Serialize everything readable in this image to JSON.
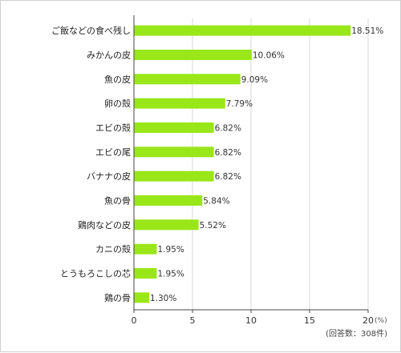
{
  "chart_data": {
    "type": "bar",
    "orientation": "horizontal",
    "categories": [
      "ご飯などの食べ残し",
      "みかんの皮",
      "魚の皮",
      "卵の殻",
      "エビの殻",
      "エビの尾",
      "バナナの皮",
      "魚の骨",
      "鶏肉などの皮",
      "カニの殻",
      "とうもろこしの芯",
      "鶏の骨"
    ],
    "values": [
      18.51,
      10.06,
      9.09,
      7.79,
      6.82,
      6.82,
      6.82,
      5.84,
      5.52,
      1.95,
      1.95,
      1.3
    ],
    "value_labels": [
      "18.51%",
      "10.06%",
      "9.09%",
      "7.79%",
      "6.82%",
      "6.82%",
      "6.82%",
      "5.84%",
      "5.52%",
      "1.95%",
      "1.95%",
      "1.30%"
    ],
    "xlim": [
      0,
      20
    ],
    "xticks": [
      0,
      5,
      10,
      15,
      20
    ],
    "xtick_labels": [
      "0",
      "5",
      "10",
      "15",
      "20"
    ],
    "x_unit_label": "(%)",
    "note": "(回答数：308件)",
    "grid": "vertical",
    "bar_color": "#99e619",
    "grid_color": "#d9d9d9",
    "axis_color": "#444444"
  }
}
